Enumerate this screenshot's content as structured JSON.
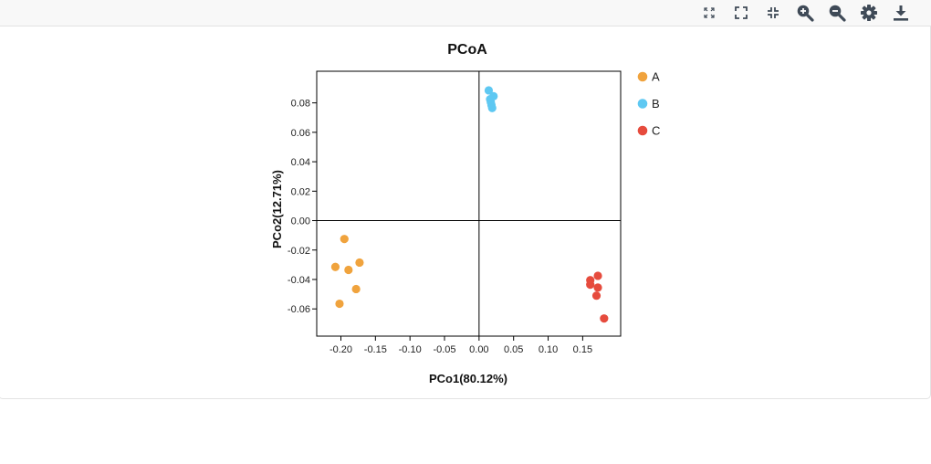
{
  "toolbar": {
    "icons": [
      "expand-corners-icon",
      "fullscreen-icon",
      "collapse-icon",
      "zoom-in-icon",
      "zoom-out-icon",
      "gear-icon",
      "download-icon"
    ],
    "icon_color": "#3f4a57"
  },
  "chart_data": {
    "type": "scatter",
    "title": "PCoA",
    "xlabel": "PCo1(80.12%)",
    "ylabel": "PCo2(12.71%)",
    "xlim": [
      -0.235,
      0.205
    ],
    "ylim": [
      -0.0785,
      0.1015
    ],
    "xticks": [
      -0.2,
      -0.15,
      -0.1,
      -0.05,
      0.0,
      0.05,
      0.1,
      0.15
    ],
    "xtick_labels": [
      "-0.20",
      "-0.15",
      "-0.10",
      "-0.05",
      "0.00",
      "0.05",
      "0.10",
      "0.15"
    ],
    "yticks": [
      -0.06,
      -0.04,
      -0.02,
      0.0,
      0.02,
      0.04,
      0.06,
      0.08
    ],
    "ytick_labels": [
      "-0.06",
      "-0.04",
      "-0.02",
      "0.00",
      "0.02",
      "0.04",
      "0.06",
      "0.08"
    ],
    "zero_lines": true,
    "grid": false,
    "legend_position": "right",
    "series": [
      {
        "name": "A",
        "color": "#f0a33d",
        "points": [
          {
            "x": -0.195,
            "y": -0.0125
          },
          {
            "x": -0.208,
            "y": -0.0315
          },
          {
            "x": -0.189,
            "y": -0.0335
          },
          {
            "x": -0.173,
            "y": -0.0285
          },
          {
            "x": -0.178,
            "y": -0.0465
          },
          {
            "x": -0.202,
            "y": -0.0565
          }
        ]
      },
      {
        "name": "B",
        "color": "#5ec8f2",
        "points": [
          {
            "x": 0.014,
            "y": 0.0885
          },
          {
            "x": 0.021,
            "y": 0.0845
          },
          {
            "x": 0.016,
            "y": 0.0825
          },
          {
            "x": 0.017,
            "y": 0.0805
          },
          {
            "x": 0.018,
            "y": 0.0785
          },
          {
            "x": 0.019,
            "y": 0.0765
          }
        ]
      },
      {
        "name": "C",
        "color": "#e64b3d",
        "points": [
          {
            "x": 0.172,
            "y": -0.0375
          },
          {
            "x": 0.161,
            "y": -0.0405
          },
          {
            "x": 0.161,
            "y": -0.0435
          },
          {
            "x": 0.172,
            "y": -0.0455
          },
          {
            "x": 0.17,
            "y": -0.051
          },
          {
            "x": 0.181,
            "y": -0.0665
          }
        ]
      }
    ]
  }
}
